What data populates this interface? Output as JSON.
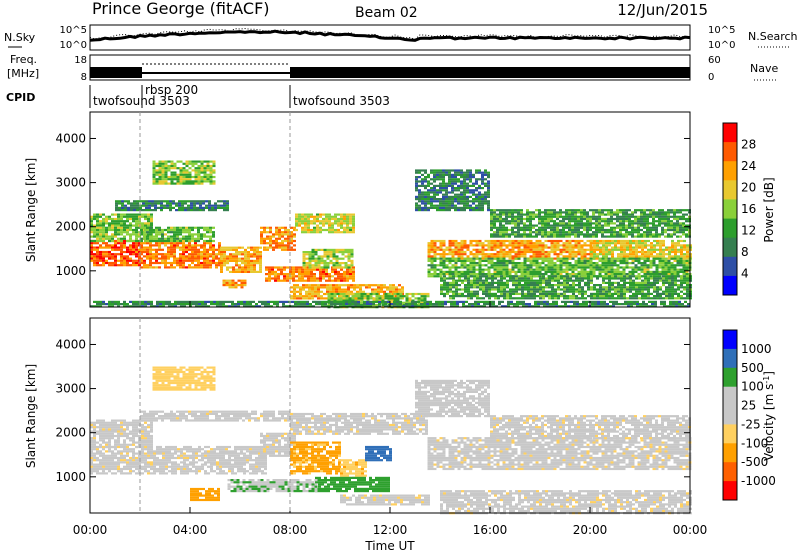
{
  "header": {
    "title": "Prince George (fitACF)",
    "beam": "Beam 02",
    "date": "12/Jun/2015"
  },
  "noise_panel": {
    "left_label": "N.Sky",
    "right_label": "N.Search",
    "left_ticks": [
      "10^5",
      "10^0"
    ],
    "right_ticks": [
      "10^5",
      "10^0"
    ]
  },
  "freq_panel": {
    "left_label_1": "Freq.",
    "left_label_2": "[MHz]",
    "left_ticks": [
      "18",
      "8"
    ],
    "right_ticks": [
      "60",
      "0"
    ],
    "right_label": "Nave"
  },
  "cpid_panel": {
    "label": "CPID",
    "segments": [
      {
        "name": "twofsound 3503",
        "start": 0,
        "end": 2
      },
      {
        "name": "rbsp 200",
        "start": 2,
        "end": 8
      },
      {
        "name": "twofsound 3503",
        "start": 8,
        "end": 24
      }
    ]
  },
  "colors": {
    "power": [
      "#0000ff",
      "#2e4fa6",
      "#357f50",
      "#2d9e2d",
      "#8ad03a",
      "#e8c830",
      "#ffa000",
      "#ff5a00",
      "#ff0000"
    ],
    "velocity": [
      "#ff0000",
      "#ff6000",
      "#ffa000",
      "#ffd060",
      "#c8c8c8",
      "#c8c8c8",
      "#2ea02e",
      "#2f6fb8",
      "#0000ff"
    ]
  },
  "chart_data": [
    {
      "type": "heatmap",
      "quantity": "power",
      "ylabel": "Slant Range [km]",
      "xlabel": "",
      "xlim": [
        0,
        24
      ],
      "ylim": [
        180,
        4600
      ],
      "yticks": [
        "1000",
        "2000",
        "3000",
        "4000"
      ],
      "colorbar_label": "Power [dB]",
      "colorbar_ticks": [
        "4",
        "8",
        "12",
        "16",
        "20",
        "24",
        "28"
      ],
      "colorbar_range": [
        0,
        32
      ],
      "regions": [
        {
          "t0": 0.0,
          "t1": 2.0,
          "r0": 1150,
          "r1": 1700,
          "value": 27
        },
        {
          "t0": 2.0,
          "t1": 5.2,
          "r0": 1100,
          "r1": 1650,
          "value": 25
        },
        {
          "t0": 5.2,
          "t1": 6.8,
          "r0": 1000,
          "r1": 1550,
          "value": 22
        },
        {
          "t0": 6.8,
          "t1": 8.2,
          "r0": 1500,
          "r1": 2000,
          "value": 24
        },
        {
          "t0": 0.0,
          "t1": 2.5,
          "r0": 1700,
          "r1": 2300,
          "value": 15
        },
        {
          "t0": 2.0,
          "t1": 5.0,
          "r0": 1700,
          "r1": 2000,
          "value": 14
        },
        {
          "t0": 1.0,
          "t1": 5.5,
          "r0": 2400,
          "r1": 2600,
          "value": 9
        },
        {
          "t0": 2.5,
          "t1": 5.0,
          "r0": 3000,
          "r1": 3500,
          "value": 16
        },
        {
          "t0": 8.2,
          "t1": 10.5,
          "r0": 1900,
          "r1": 2300,
          "value": 18
        },
        {
          "t0": 7.0,
          "t1": 10.5,
          "r0": 800,
          "r1": 1100,
          "value": 25
        },
        {
          "t0": 8.5,
          "t1": 10.5,
          "r0": 1100,
          "r1": 1500,
          "value": 17
        },
        {
          "t0": 8.0,
          "t1": 12.5,
          "r0": 400,
          "r1": 700,
          "value": 22
        },
        {
          "t0": 9.5,
          "t1": 13.5,
          "r0": 200,
          "r1": 500,
          "value": 15
        },
        {
          "t0": 13.5,
          "t1": 20.0,
          "r0": 1300,
          "r1": 1700,
          "value": 23
        },
        {
          "t0": 20.0,
          "t1": 24.0,
          "r0": 1300,
          "r1": 1700,
          "value": 20
        },
        {
          "t0": 13.5,
          "t1": 24.0,
          "r0": 900,
          "r1": 1300,
          "value": 14
        },
        {
          "t0": 14.0,
          "t1": 24.0,
          "r0": 400,
          "r1": 900,
          "value": 12
        },
        {
          "t0": 16.0,
          "t1": 24.0,
          "r0": 1800,
          "r1": 2400,
          "value": 12
        },
        {
          "t0": 13.0,
          "t1": 16.0,
          "r0": 2400,
          "r1": 3300,
          "value": 9
        },
        {
          "t0": 0.0,
          "t1": 24.0,
          "r0": 190,
          "r1": 320,
          "value": 10
        },
        {
          "t0": 5.3,
          "t1": 6.2,
          "r0": 650,
          "r1": 800,
          "value": 23
        }
      ]
    },
    {
      "type": "heatmap",
      "quantity": "velocity",
      "ylabel": "Slant Range [km]",
      "xlabel": "Time UT",
      "xlim": [
        0,
        24
      ],
      "ylim": [
        180,
        4600
      ],
      "xticks": [
        "00:00",
        "04:00",
        "08:00",
        "12:00",
        "16:00",
        "20:00",
        "00:00"
      ],
      "yticks": [
        "1000",
        "2000",
        "3000",
        "4000"
      ],
      "colorbar_label": "Velocity [m s",
      "colorbar_label_sup": "-1",
      "colorbar_label_end": "]",
      "colorbar_ticks": [
        "1000",
        "500",
        "100",
        "25",
        "-25",
        "-100",
        "-500",
        "-1000"
      ],
      "colorbar_ticks_order": "top-to-bottom",
      "regions": [
        {
          "t0": 0.0,
          "t1": 7.0,
          "r0": 1100,
          "r1": 1700,
          "value": 0
        },
        {
          "t0": 0.0,
          "t1": 2.5,
          "r0": 1700,
          "r1": 2300,
          "value": 0
        },
        {
          "t0": 2.0,
          "t1": 8.0,
          "r0": 2300,
          "r1": 2500,
          "value": 0
        },
        {
          "t0": 8.0,
          "t1": 13.5,
          "r0": 2000,
          "r1": 2450,
          "value": 0
        },
        {
          "t0": 6.8,
          "t1": 8.2,
          "r0": 1500,
          "r1": 2000,
          "value": 0
        },
        {
          "t0": 13.5,
          "t1": 24.0,
          "r0": 1200,
          "r1": 1900,
          "value": 0
        },
        {
          "t0": 8.0,
          "t1": 10.0,
          "r0": 1100,
          "r1": 1800,
          "value": -120
        },
        {
          "t0": 10.0,
          "t1": 11.0,
          "r0": 1000,
          "r1": 1400,
          "value": -80
        },
        {
          "t0": 9.0,
          "t1": 12.0,
          "r0": 700,
          "r1": 1000,
          "value": 150
        },
        {
          "t0": 5.5,
          "t1": 9.0,
          "r0": 700,
          "r1": 950,
          "value": 90
        },
        {
          "t0": 4.0,
          "t1": 5.2,
          "r0": 500,
          "r1": 750,
          "value": -150
        },
        {
          "t0": 10.0,
          "t1": 13.5,
          "r0": 400,
          "r1": 600,
          "value": 0
        },
        {
          "t0": 2.5,
          "t1": 5.0,
          "r0": 3000,
          "r1": 3500,
          "value": -60
        },
        {
          "t0": 11.0,
          "t1": 12.0,
          "r0": 1400,
          "r1": 1700,
          "value": 600
        },
        {
          "t0": 13.0,
          "t1": 16.0,
          "r0": 2400,
          "r1": 3200,
          "value": 40
        },
        {
          "t0": 14.0,
          "t1": 24.0,
          "r0": 200,
          "r1": 700,
          "value": 0
        },
        {
          "t0": 16.0,
          "t1": 24.0,
          "r0": 1900,
          "r1": 2400,
          "value": 0
        }
      ]
    }
  ]
}
